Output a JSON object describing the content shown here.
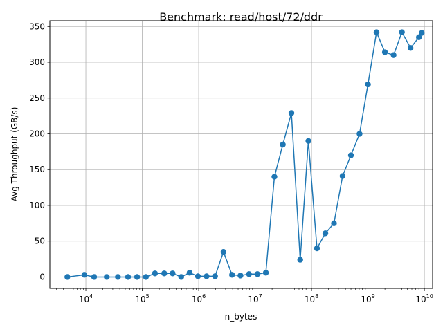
{
  "chart_data": {
    "type": "line",
    "title": "Benchmark: read/host/72/ddr",
    "xlabel": "n_bytes",
    "ylabel": "Avg Throughput (GB/s)",
    "x_scale": "log",
    "xlim": [
      2300,
      14000000000
    ],
    "ylim": [
      -16,
      358
    ],
    "grid": true,
    "xticks": [
      {
        "value": 10000,
        "base": "10",
        "exp": "4"
      },
      {
        "value": 100000,
        "base": "10",
        "exp": "5"
      },
      {
        "value": 1000000,
        "base": "10",
        "exp": "6"
      },
      {
        "value": 10000000,
        "base": "10",
        "exp": "7"
      },
      {
        "value": 100000000,
        "base": "10",
        "exp": "8"
      },
      {
        "value": 1000000000,
        "base": "10",
        "exp": "9"
      },
      {
        "value": 10000000000,
        "base": "10",
        "exp": "10"
      }
    ],
    "yticks": [
      0,
      50,
      100,
      150,
      200,
      250,
      300,
      350
    ],
    "series": [
      {
        "color": "#1f77b4",
        "x": [
          4700,
          9400,
          14000,
          23500,
          37000,
          56000,
          81000,
          116000,
          168000,
          245000,
          345000,
          490000,
          690000,
          970000,
          1380000,
          1950000,
          2750000,
          3900000,
          5500000,
          7800000,
          11000000,
          15500000,
          22000000,
          31000000,
          44000000,
          63000000,
          88000000,
          125000000,
          176000000,
          250000000,
          355000000,
          500000000,
          710000000,
          1000000000,
          1420000000,
          2000000000,
          2850000000,
          4000000000,
          5700000000,
          8000000000,
          9000000000
        ],
        "y": [
          0,
          3,
          0,
          0,
          0,
          0,
          0,
          0,
          5,
          5,
          5,
          0,
          6,
          1,
          1,
          1,
          35,
          3,
          2,
          4,
          4,
          6,
          140,
          185,
          229,
          24,
          190,
          40,
          61,
          75,
          141,
          170,
          200,
          269,
          342,
          314,
          310,
          342,
          320,
          335,
          341
        ]
      }
    ]
  }
}
